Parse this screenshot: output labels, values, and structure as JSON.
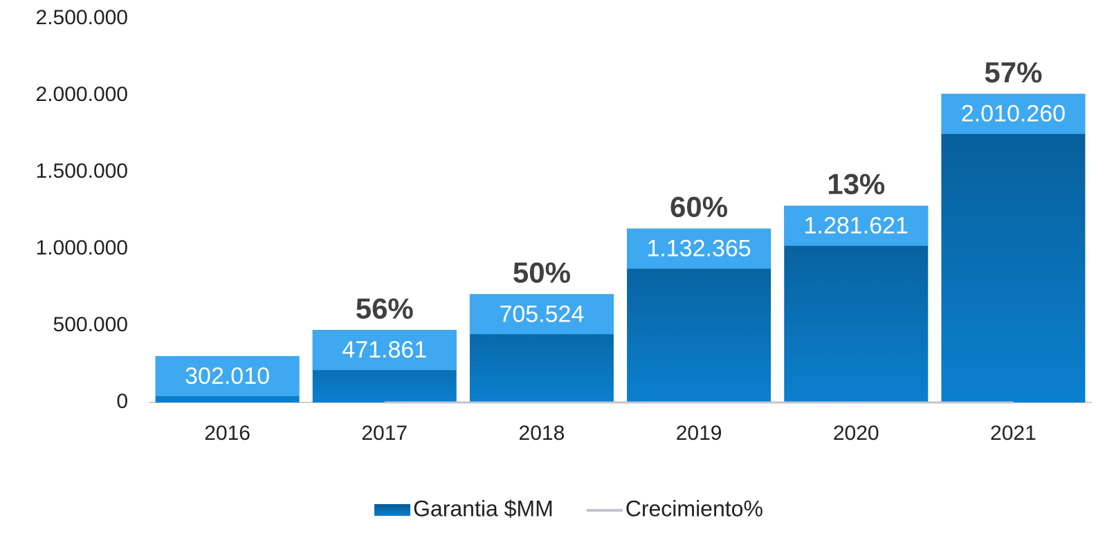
{
  "chart_data": {
    "type": "bar",
    "categories": [
      "2016",
      "2017",
      "2018",
      "2019",
      "2020",
      "2021"
    ],
    "series": [
      {
        "name": "Garantia $MM",
        "type": "bar",
        "color": "#0a6fb4",
        "values": [
          302010,
          471861,
          705524,
          1132365,
          1281621,
          2010260
        ],
        "value_labels": [
          "302.010",
          "471.861",
          "705.524",
          "1.132.365",
          "1.281.621",
          "2.010.260"
        ]
      },
      {
        "name": "Crecimiento%",
        "type": "line",
        "color": "#c3c3cb",
        "values": [
          null,
          0.56,
          0.5,
          0.6,
          0.13,
          0.57
        ],
        "value_labels": [
          null,
          "56%",
          "50%",
          "60%",
          "13%",
          "57%"
        ]
      }
    ],
    "ylim": [
      0,
      2500000
    ],
    "yticks": [
      0,
      {
        "value": 500000,
        "label": "500.000"
      },
      {
        "value": 1000000,
        "label": "1.000.000"
      },
      {
        "value": 1500000,
        "label": "1.500.000"
      },
      {
        "value": 2000000,
        "label": "2.000.000"
      },
      {
        "value": 2500000,
        "label": "2.500.000"
      }
    ],
    "legend": "bottom"
  }
}
